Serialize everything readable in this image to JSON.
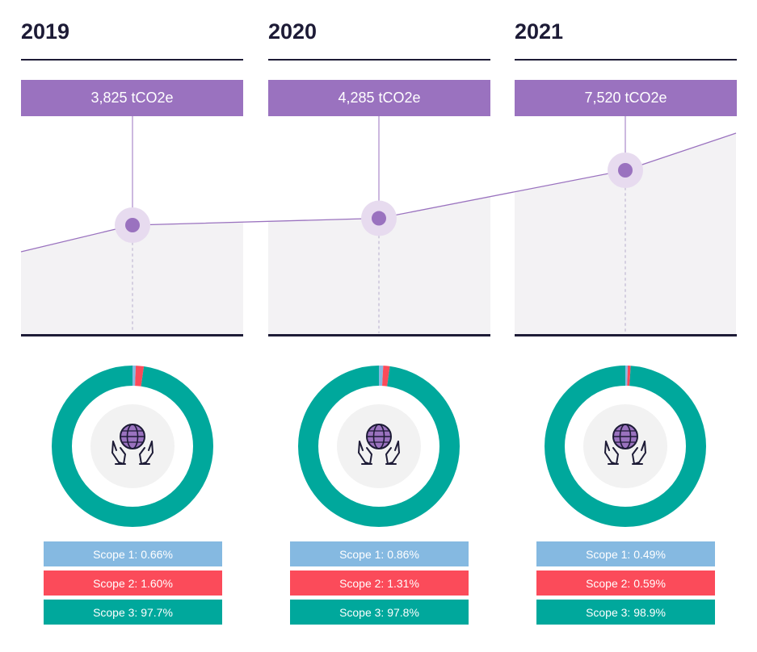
{
  "chart_data": {
    "type": "area",
    "x": [
      "2019",
      "2020",
      "2021"
    ],
    "series": [
      {
        "values": [
          3825,
          4285,
          7520
        ]
      }
    ],
    "data_labels": [
      "3,825 tCO2e",
      "4,285 tCO2e",
      "7,520 tCO2e"
    ],
    "scope_breakdown": [
      {
        "year": "2019",
        "scope1": 0.66,
        "scope2": 1.6,
        "scope3": 97.7,
        "labels": [
          "Scope 1: 0.66%",
          "Scope 2: 1.60%",
          "Scope 3: 97.7%"
        ]
      },
      {
        "year": "2020",
        "scope1": 0.86,
        "scope2": 1.31,
        "scope3": 97.8,
        "labels": [
          "Scope 1: 0.86%",
          "Scope 2: 1.31%",
          "Scope 3: 97.8%"
        ]
      },
      {
        "year": "2021",
        "scope1": 0.49,
        "scope2": 0.59,
        "scope3": 98.9,
        "labels": [
          "Scope 1: 0.49%",
          "Scope 2: 0.59%",
          "Scope 3: 98.9%"
        ]
      }
    ],
    "legend": "none",
    "grid": false
  },
  "colors": {
    "line": "#9a72bf",
    "marker": "#9a72bf",
    "marker_halo": "#e7dbef",
    "area": "#f3f2f4",
    "scope1": "#85b9e1",
    "scope2": "#fb4b5a",
    "scope3": "#00a89c",
    "title": "#1d1b36",
    "rule": "#1d1b36",
    "donut_center": "#f2f2f2"
  },
  "icons": {
    "center": "hands-globe-icon"
  }
}
